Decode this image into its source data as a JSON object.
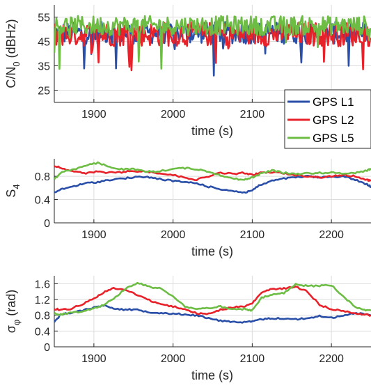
{
  "colors": {
    "L1": "#2a4fa8",
    "L2": "#e8222a",
    "L5": "#6dbd45"
  },
  "chart_data": [
    {
      "type": "line",
      "id": "cn0",
      "ylabel": "C/N0 (dBHz)",
      "xlabel": "time (s)",
      "xlim": [
        1850,
        2250
      ],
      "ylim": [
        20,
        60
      ],
      "xticks": [
        "1900",
        "2000",
        "2100",
        "2200"
      ],
      "yticks": [
        "25",
        "35",
        "45",
        "55"
      ],
      "grid": true,
      "legend": {
        "placement": "bottom-right",
        "entries": [
          "GPS L1",
          "GPS L2",
          "GPS L5"
        ]
      },
      "series": [
        {
          "name": "GPS L1",
          "style": "noisy",
          "mean": 48.5,
          "spread": 4.5,
          "min": 29,
          "max": 57
        },
        {
          "name": "GPS L2",
          "style": "noisy",
          "mean": 48,
          "spread": 5,
          "min": 33,
          "max": 57
        },
        {
          "name": "GPS L5",
          "style": "noisy",
          "mean": 51.5,
          "spread": 4,
          "min": 30,
          "max": 60
        }
      ]
    },
    {
      "type": "line",
      "id": "s4",
      "ylabel": "S4",
      "xlabel": "time (s)",
      "xlim": [
        1850,
        2250
      ],
      "ylim": [
        0,
        1.1
      ],
      "xticks": [
        "1900",
        "2000",
        "2100",
        "2200"
      ],
      "yticks": [
        "0",
        "0.4",
        "0.8"
      ],
      "grid": true,
      "series": [
        {
          "name": "GPS L1",
          "x": [
            1850,
            1860,
            1875,
            1890,
            1905,
            1920,
            1935,
            1950,
            1965,
            1980,
            2000,
            2015,
            2030,
            2045,
            2060,
            2075,
            2090,
            2100,
            2110,
            2125,
            2140,
            2155,
            2170,
            2185,
            2200,
            2215,
            2230,
            2245,
            2250
          ],
          "y": [
            0.52,
            0.58,
            0.63,
            0.68,
            0.7,
            0.74,
            0.76,
            0.78,
            0.79,
            0.76,
            0.72,
            0.7,
            0.68,
            0.62,
            0.58,
            0.55,
            0.52,
            0.56,
            0.65,
            0.72,
            0.76,
            0.78,
            0.8,
            0.78,
            0.79,
            0.8,
            0.74,
            0.66,
            0.62
          ]
        },
        {
          "name": "GPS L2",
          "x": [
            1850,
            1860,
            1875,
            1890,
            1905,
            1920,
            1935,
            1950,
            1965,
            1980,
            2000,
            2015,
            2030,
            2045,
            2060,
            2075,
            2090,
            2100,
            2110,
            2125,
            2140,
            2155,
            2170,
            2185,
            2200,
            2215,
            2230,
            2245,
            2250
          ],
          "y": [
            0.98,
            0.94,
            0.88,
            0.85,
            0.88,
            0.86,
            0.87,
            0.89,
            0.88,
            0.86,
            0.82,
            0.78,
            0.74,
            0.8,
            0.86,
            0.84,
            0.86,
            0.82,
            0.86,
            0.87,
            0.85,
            0.82,
            0.8,
            0.78,
            0.8,
            0.82,
            0.8,
            0.74,
            0.72
          ]
        },
        {
          "name": "GPS L5",
          "x": [
            1850,
            1860,
            1875,
            1890,
            1905,
            1920,
            1935,
            1950,
            1965,
            1980,
            2000,
            2015,
            2030,
            2045,
            2060,
            2075,
            2090,
            2100,
            2110,
            2125,
            2140,
            2155,
            2170,
            2185,
            2200,
            2215,
            2230,
            2245,
            2250
          ],
          "y": [
            0.75,
            0.88,
            0.92,
            0.98,
            1.03,
            0.96,
            0.92,
            0.92,
            0.88,
            0.88,
            0.93,
            0.94,
            0.92,
            0.88,
            0.82,
            0.76,
            0.74,
            0.78,
            0.84,
            0.9,
            0.86,
            0.84,
            0.85,
            0.86,
            0.86,
            0.85,
            0.86,
            0.9,
            0.93
          ]
        }
      ]
    },
    {
      "type": "line",
      "id": "sigma",
      "ylabel": "σφ (rad)",
      "xlabel": "time (s)",
      "xlim": [
        1850,
        2250
      ],
      "ylim": [
        0,
        1.8
      ],
      "xticks": [
        "1900",
        "2000",
        "2100",
        "2200"
      ],
      "yticks": [
        "0",
        "0.4",
        "0.8",
        "1.2",
        "1.6"
      ],
      "grid": true,
      "series": [
        {
          "name": "GPS L1",
          "x": [
            1850,
            1858,
            1870,
            1885,
            1900,
            1912,
            1925,
            1940,
            1955,
            1970,
            1985,
            2000,
            2015,
            2030,
            2045,
            2060,
            2075,
            2090,
            2100,
            2112,
            2125,
            2140,
            2155,
            2170,
            2185,
            2200,
            2215,
            2230,
            2240,
            2250
          ],
          "y": [
            0.62,
            0.82,
            0.86,
            0.92,
            1.0,
            1.05,
            0.98,
            0.94,
            0.94,
            0.88,
            0.86,
            0.84,
            0.82,
            0.8,
            0.72,
            0.66,
            0.64,
            0.62,
            0.64,
            0.7,
            0.72,
            0.72,
            0.7,
            0.72,
            0.78,
            0.74,
            0.78,
            0.86,
            0.84,
            0.8
          ]
        },
        {
          "name": "GPS L2",
          "x": [
            1850,
            1858,
            1870,
            1885,
            1900,
            1912,
            1925,
            1940,
            1955,
            1970,
            1985,
            2000,
            2015,
            2030,
            2045,
            2060,
            2075,
            2090,
            2100,
            2112,
            2125,
            2140,
            2155,
            2170,
            2185,
            2200,
            2215,
            2230,
            2240,
            2250
          ],
          "y": [
            0.96,
            0.94,
            0.96,
            1.08,
            1.22,
            1.38,
            1.48,
            1.44,
            1.32,
            1.18,
            1.08,
            1.02,
            0.96,
            0.84,
            0.84,
            0.94,
            1.0,
            1.02,
            1.1,
            1.38,
            1.46,
            1.48,
            1.52,
            1.4,
            1.06,
            0.96,
            0.9,
            0.86,
            0.82,
            0.8
          ]
        },
        {
          "name": "GPS L5",
          "x": [
            1850,
            1858,
            1870,
            1885,
            1900,
            1912,
            1925,
            1940,
            1955,
            1970,
            1985,
            2000,
            2015,
            2030,
            2045,
            2060,
            2075,
            2090,
            2100,
            2112,
            2125,
            2140,
            2155,
            2170,
            2185,
            2200,
            2215,
            2230,
            2240,
            2250
          ],
          "y": [
            0.84,
            0.82,
            0.86,
            0.9,
            0.98,
            1.06,
            1.22,
            1.48,
            1.62,
            1.52,
            1.48,
            1.28,
            1.02,
            0.96,
            0.98,
            1.02,
            0.94,
            0.96,
            0.92,
            1.24,
            1.32,
            1.36,
            1.58,
            1.54,
            1.55,
            1.56,
            1.28,
            1.02,
            0.94,
            0.92
          ]
        }
      ]
    }
  ]
}
